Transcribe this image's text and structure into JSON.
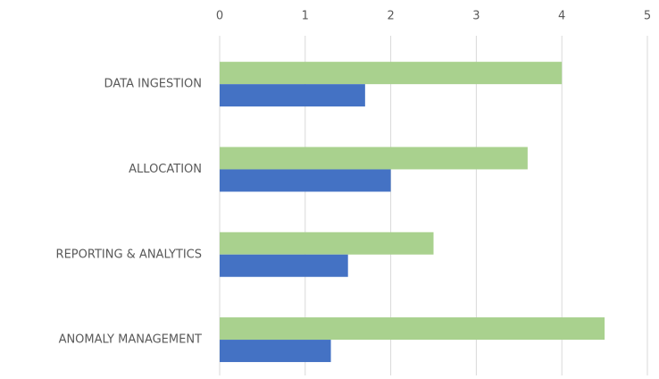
{
  "chart_data": {
    "type": "hbar",
    "categories": [
      "DATA INGESTION",
      "ALLOCATION",
      "REPORTING & ANALYTICS",
      "ANOMALY MANAGEMENT"
    ],
    "series": [
      {
        "color": "#a9d18e",
        "values": [
          4,
          3.6,
          2.5,
          4.5
        ]
      },
      {
        "color": "#4472c4",
        "values": [
          1.7,
          2,
          1.5,
          1.3
        ]
      }
    ],
    "xlim": [
      0,
      5
    ],
    "xticks": [
      0,
      1,
      2,
      3,
      4,
      5
    ],
    "grid": true
  }
}
